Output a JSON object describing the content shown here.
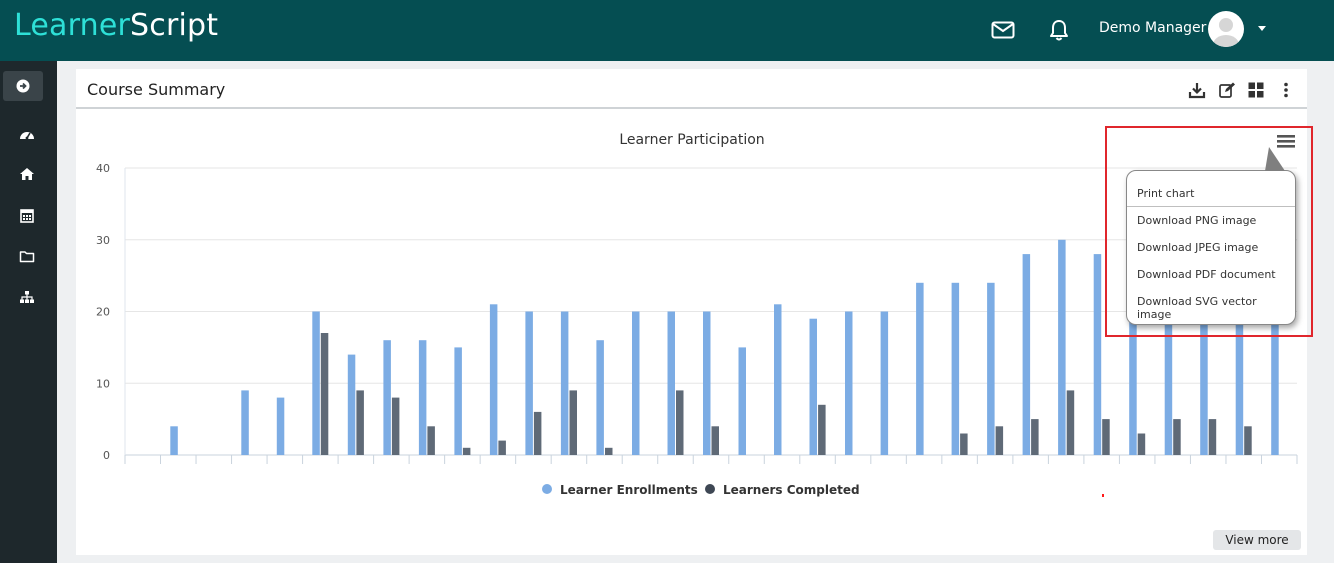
{
  "header": {
    "logo_part1": "Learner",
    "logo_part2": "Script",
    "user_name": "Demo Manager",
    "icons": [
      "mail-icon",
      "bell-icon",
      "avatar",
      "caret-down-icon"
    ]
  },
  "sidebar": {
    "icons": [
      "arrow-right-circle-icon",
      "dashboard-gauge-icon",
      "home-icon",
      "calendar-icon",
      "folder-icon",
      "sitemap-icon"
    ]
  },
  "panel": {
    "title": "Course Summary",
    "icons": [
      "download-icon",
      "edit-icon",
      "grid-icon",
      "more-vertical-icon"
    ],
    "view_more_label": "View more"
  },
  "export_menu": {
    "items": [
      "Print chart",
      "Download PNG image",
      "Download JPEG image",
      "Download PDF document",
      "Download SVG vector image"
    ]
  },
  "colors": {
    "topbar": "#054e52",
    "sidebar": "#1e282c",
    "enrollments": "#7cace4",
    "completed": "#5f6a77",
    "highlight": "#e0262c"
  },
  "chart_data": {
    "type": "bar",
    "title": "Learner Participation",
    "ylim": [
      0,
      40
    ],
    "yticks": [
      0,
      10,
      20,
      30,
      40
    ],
    "grid": true,
    "legend_placement": "bottom-center",
    "categories_count": 33,
    "series": [
      {
        "name": "Learner Enrollments",
        "color": "#7cace4",
        "values": [
          0,
          4,
          0,
          9,
          8,
          20,
          14,
          16,
          16,
          15,
          21,
          20,
          20,
          16,
          20,
          20,
          20,
          15,
          21,
          19,
          20,
          20,
          24,
          24,
          24,
          28,
          30,
          28,
          20,
          20,
          20,
          20,
          20
        ]
      },
      {
        "name": "Learners Completed",
        "color": "#5f6a77",
        "values": [
          0,
          0,
          0,
          0,
          0,
          17,
          9,
          8,
          4,
          1,
          2,
          6,
          9,
          1,
          0,
          9,
          4,
          0,
          0,
          7,
          0,
          0,
          0,
          3,
          4,
          5,
          9,
          5,
          3,
          5,
          5,
          4,
          0
        ]
      }
    ]
  }
}
